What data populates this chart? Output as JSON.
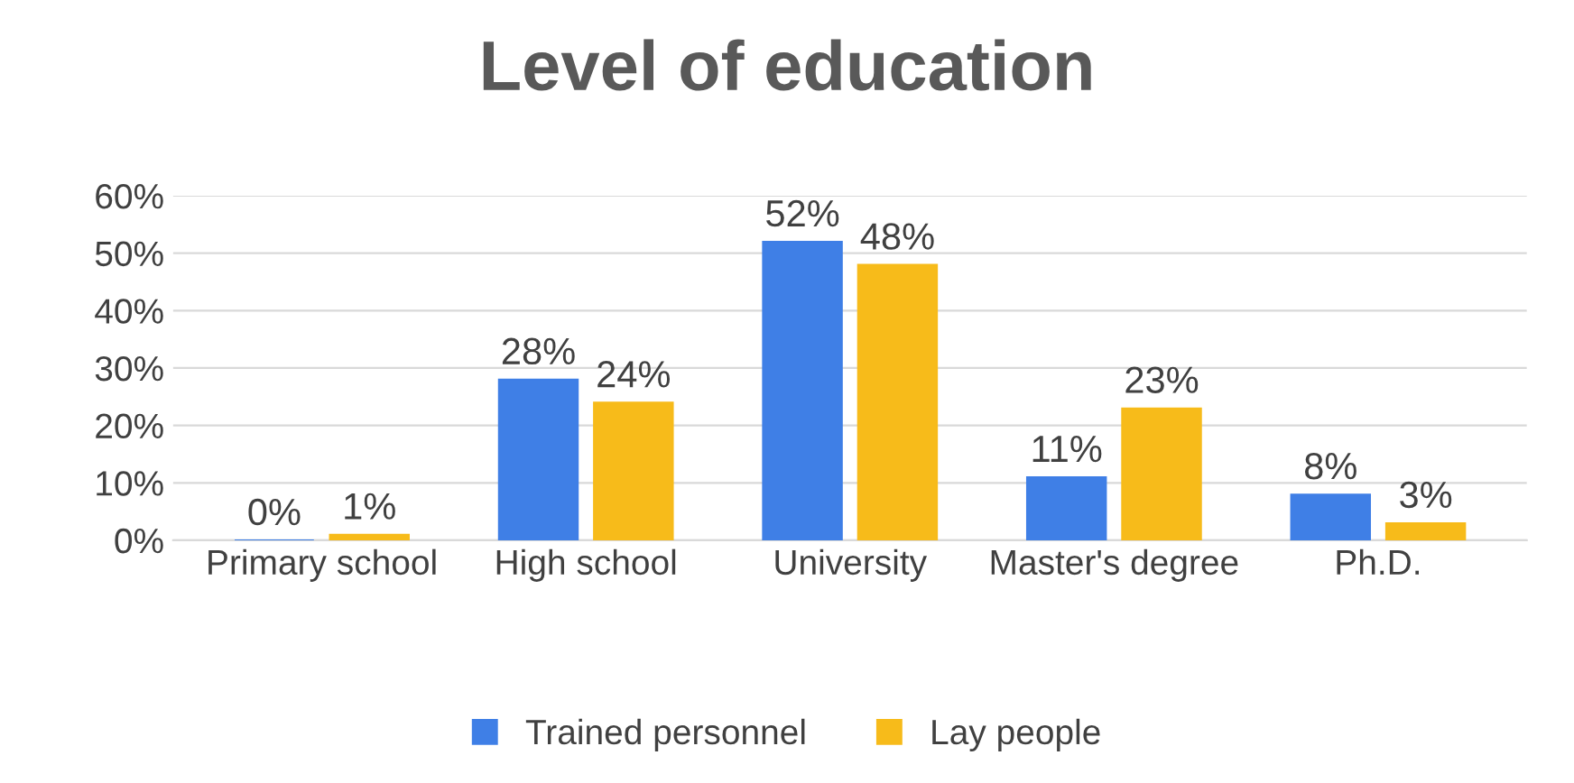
{
  "chart_data": {
    "type": "bar",
    "title": "Level of education",
    "categories": [
      "Primary school",
      "High school",
      "University",
      "Master's degree",
      "Ph.D."
    ],
    "series": [
      {
        "name": "Trained personnel",
        "color": "#3f7fe6",
        "values": [
          0,
          28,
          52,
          11,
          8
        ],
        "value_labels": [
          "0%",
          "28%",
          "52%",
          "11%",
          "8%"
        ]
      },
      {
        "name": "Lay people",
        "color": "#f7bb1a",
        "values": [
          1,
          24,
          48,
          23,
          3
        ],
        "value_labels": [
          "1%",
          "24%",
          "48%",
          "23%",
          "3%"
        ]
      }
    ],
    "ylim": [
      0,
      60
    ],
    "yticks": [
      {
        "value": 0,
        "label": "0%"
      },
      {
        "value": 10,
        "label": "10%"
      },
      {
        "value": 20,
        "label": "20%"
      },
      {
        "value": 30,
        "label": "30%"
      },
      {
        "value": 40,
        "label": "40%"
      },
      {
        "value": 50,
        "label": "50%"
      },
      {
        "value": 60,
        "label": "60%"
      }
    ],
    "grid": "y",
    "legend": "bottom"
  }
}
